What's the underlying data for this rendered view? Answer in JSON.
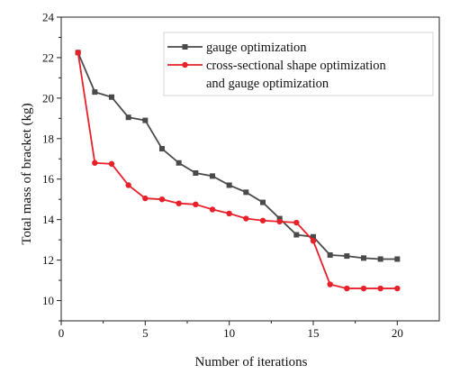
{
  "chart_data": {
    "type": "line",
    "xlabel": "Number of iterations",
    "ylabel": "Total mass of bracket (kg)",
    "xlim": [
      0,
      22.5
    ],
    "ylim": [
      9,
      24
    ],
    "xticks": [
      0,
      5,
      10,
      15,
      20
    ],
    "yticks": [
      10,
      12,
      14,
      16,
      18,
      20,
      22,
      24
    ],
    "x": [
      1,
      2,
      3,
      4,
      5,
      6,
      7,
      8,
      9,
      10,
      11,
      12,
      13,
      14,
      15,
      16,
      17,
      18,
      19,
      20
    ],
    "grid": false,
    "legend_position": "top-right",
    "series": [
      {
        "name": "gauge optimization",
        "legend_lines": [
          "gauge optimization"
        ],
        "color": "#4a4a4a",
        "marker": "square",
        "values": [
          22.25,
          20.3,
          20.05,
          19.05,
          18.9,
          17.5,
          16.8,
          16.3,
          16.15,
          15.7,
          15.35,
          14.85,
          14.05,
          13.25,
          13.15,
          12.25,
          12.2,
          12.1,
          12.05,
          12.05
        ]
      },
      {
        "name": "cross-sectional shape optimization and gauge optimization",
        "legend_lines": [
          "cross-sectional shape optimization",
          "and gauge optimization"
        ],
        "color": "#e8202a",
        "marker": "circle",
        "values": [
          22.25,
          16.8,
          16.75,
          15.7,
          15.05,
          15.0,
          14.8,
          14.75,
          14.5,
          14.3,
          14.05,
          13.95,
          13.9,
          13.85,
          12.95,
          10.8,
          10.6,
          10.6,
          10.6,
          10.6
        ]
      }
    ]
  }
}
